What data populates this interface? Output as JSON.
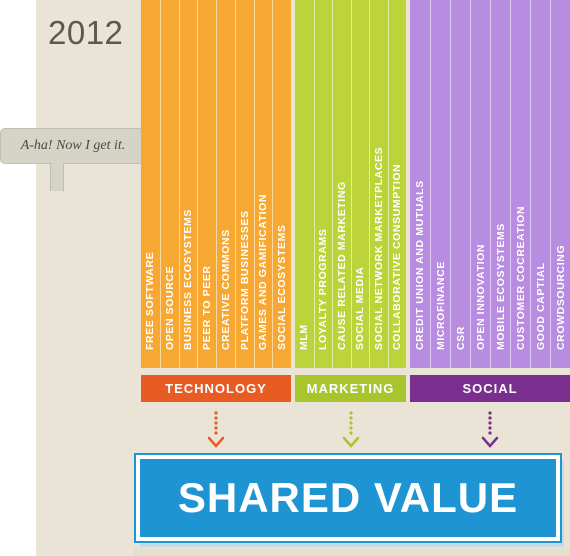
{
  "year": "2012",
  "bubble": {
    "text": "A-ha! Now I get it."
  },
  "panels": [
    {
      "category": "TECHNOLOGY",
      "color": "#f7a832",
      "cat_color": "#e85c24",
      "items": [
        "FREE SOFTWARE",
        "OPEN SOURCE",
        "BUSINESS ECOSYSTEMS",
        "PEER TO PEER",
        "CREATIVE COMMONS",
        "PLATFORM BUSINESSES",
        "GAMES AND GAMIFICATION",
        "SOCIAL ECOSYSTEMS"
      ]
    },
    {
      "category": "MARKETING",
      "color": "#bcd43a",
      "cat_color": "#a9c52e",
      "items": [
        "MLM",
        "LOYALTY PROGRAMS",
        "CAUSE RELATED MARKETING",
        "SOCIAL MEDIA",
        "SOCIAL NETWORK MARKETPLACES",
        "COLLABORATIVE CONSUMPTION"
      ]
    },
    {
      "category": "SOCIAL",
      "color": "#b88ce0",
      "cat_color": "#7a2e8e",
      "items": [
        "CREDIT UNION AND MUTUALS",
        "MICROFINANCE",
        "CSR",
        "OPEN INNOVATION",
        "MOBILE ECOSYSTEMS",
        "CUSTOMER COCREATION",
        "GOOD CAPTIAL",
        "CROWDSOURCING"
      ]
    }
  ],
  "result": {
    "label": "SHARED VALUE",
    "color": "#1f94d2"
  }
}
